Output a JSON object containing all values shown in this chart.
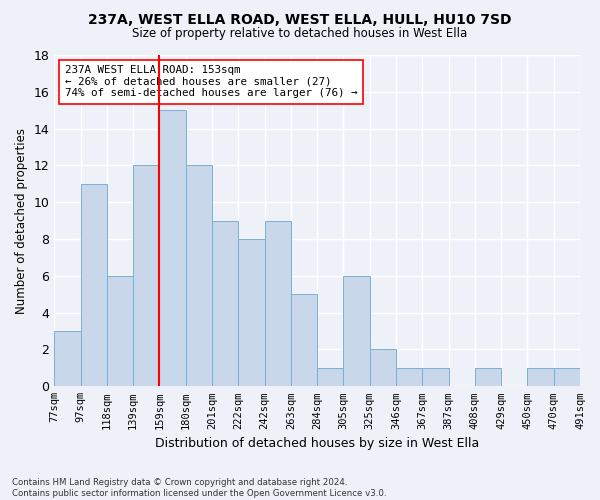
{
  "title": "237A, WEST ELLA ROAD, WEST ELLA, HULL, HU10 7SD",
  "subtitle": "Size of property relative to detached houses in West Ella",
  "xlabel": "Distribution of detached houses by size in West Ella",
  "ylabel": "Number of detached properties",
  "bar_values": [
    3,
    11,
    6,
    12,
    15,
    12,
    9,
    8,
    9,
    5,
    1,
    6,
    2,
    1,
    1,
    0,
    1,
    0,
    1,
    1
  ],
  "bar_labels": [
    "77sqm",
    "97sqm",
    "118sqm",
    "139sqm",
    "159sqm",
    "180sqm",
    "201sqm",
    "222sqm",
    "242sqm",
    "263sqm",
    "284sqm",
    "305sqm",
    "325sqm",
    "346sqm",
    "367sqm",
    "387sqm",
    "408sqm",
    "429sqm",
    "450sqm",
    "470sqm",
    "491sqm"
  ],
  "bar_color": "#c8d8ea",
  "bar_edge_color": "#7aafd4",
  "vline_color": "red",
  "vline_position": 3.5,
  "annotation_text": "237A WEST ELLA ROAD: 153sqm\n← 26% of detached houses are smaller (27)\n74% of semi-detached houses are larger (76) →",
  "annotation_box_color": "white",
  "annotation_box_edge_color": "red",
  "ylim": [
    0,
    18
  ],
  "yticks": [
    0,
    2,
    4,
    6,
    8,
    10,
    12,
    14,
    16,
    18
  ],
  "bg_color": "#eef2f8",
  "grid_color": "#ffffff",
  "footnote": "Contains HM Land Registry data © Crown copyright and database right 2024.\nContains public sector information licensed under the Open Government Licence v3.0."
}
